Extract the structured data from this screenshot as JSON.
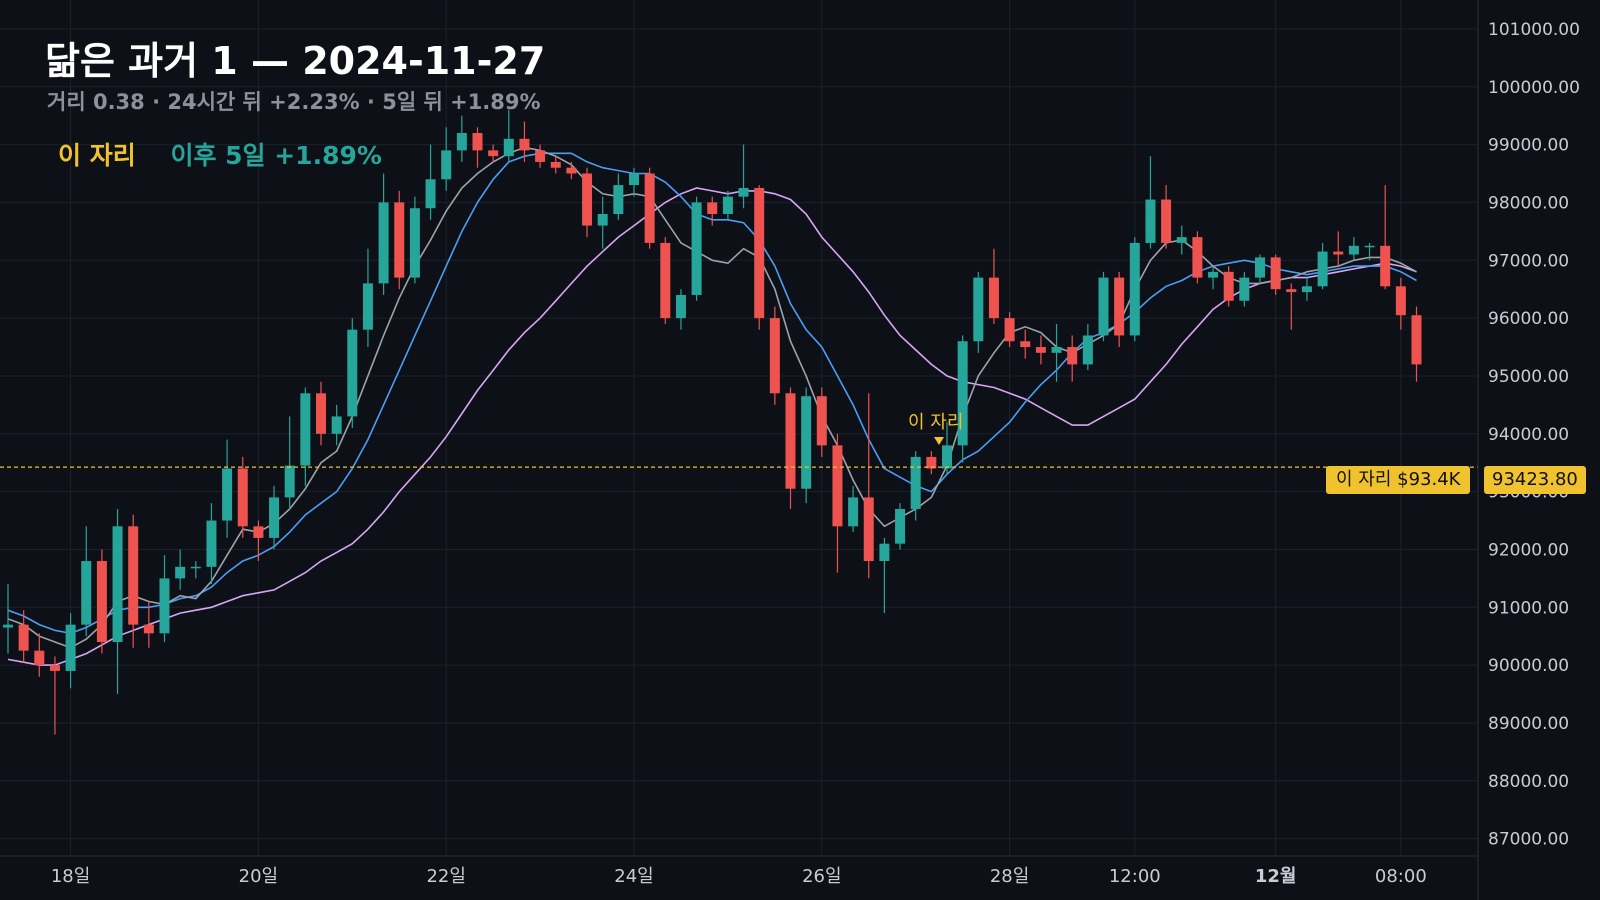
{
  "title": "닮은 과거 1 — 2024-11-27",
  "subtitle": "거리 0.38 · 24시간 뒤 +2.23% · 5일 뒤 +1.89%",
  "legend": {
    "here": "이 자리",
    "after": "이후 5일 +1.89%"
  },
  "callout": "이 자리",
  "marker_label": "이 자리 $93.4K",
  "price_label": "93423.80",
  "colors": {
    "up": "#26a69a",
    "down": "#ef5350",
    "accent": "#f0c22e",
    "ma_fast": "#9ea3ab",
    "ma_mid": "#4a9ef5",
    "ma_slow": "#d7a6f5",
    "grid": "#1c212b",
    "background": "#0d1017"
  },
  "chart_data": {
    "type": "candlestick",
    "ylim": [
      86700,
      101500
    ],
    "yticks": [
      "101000.00",
      "100000.00",
      "99000.00",
      "98000.00",
      "97000.00",
      "96000.00",
      "95000.00",
      "94000.00",
      "93000.00",
      "92000.00",
      "91000.00",
      "90000.00",
      "89000.00",
      "88000.00",
      "87000.00"
    ],
    "xticks": [
      "18일",
      "20일",
      "22일",
      "24일",
      "26일",
      "28일",
      "12:00",
      "12월",
      "08:00"
    ],
    "bold_xtick": "12월",
    "highlight_price": 93423.8,
    "highlight_index": 60,
    "candles": [
      [
        90650,
        90700,
        91400,
        90200
      ],
      [
        90700,
        90250,
        90950,
        90050
      ],
      [
        90250,
        90000,
        90550,
        89800
      ],
      [
        90000,
        89900,
        90150,
        88800
      ],
      [
        89900,
        90700,
        90900,
        89600
      ],
      [
        90700,
        91800,
        92400,
        90500
      ],
      [
        91800,
        90400,
        92000,
        90200
      ],
      [
        90400,
        92400,
        92700,
        89500
      ],
      [
        92400,
        90700,
        92600,
        90300
      ],
      [
        90700,
        90550,
        91100,
        90300
      ],
      [
        90550,
        91500,
        91900,
        90400
      ],
      [
        91500,
        91700,
        92000,
        91300
      ],
      [
        91700,
        91700,
        91800,
        91500
      ],
      [
        91700,
        92500,
        92800,
        91400
      ],
      [
        92500,
        93400,
        93900,
        92200
      ],
      [
        93400,
        92400,
        93600,
        92200
      ],
      [
        92400,
        92200,
        92500,
        91800
      ],
      [
        92200,
        92900,
        93100,
        92000
      ],
      [
        92900,
        93450,
        94300,
        92700
      ],
      [
        93450,
        94700,
        94800,
        93100
      ],
      [
        94700,
        94000,
        94900,
        93800
      ],
      [
        94000,
        94300,
        94500,
        93800
      ],
      [
        94300,
        95800,
        96000,
        94100
      ],
      [
        95800,
        96600,
        97200,
        95500
      ],
      [
        96600,
        98000,
        98500,
        96400
      ],
      [
        98000,
        96700,
        98200,
        96500
      ],
      [
        96700,
        97900,
        98100,
        96600
      ],
      [
        97900,
        98400,
        99000,
        97700
      ],
      [
        98400,
        98900,
        99300,
        98200
      ],
      [
        98900,
        99200,
        99500,
        98700
      ],
      [
        99200,
        98900,
        99300,
        98600
      ],
      [
        98900,
        98800,
        99000,
        98700
      ],
      [
        98800,
        99100,
        99600,
        98700
      ],
      [
        99100,
        98900,
        99400,
        98700
      ],
      [
        98900,
        98700,
        99000,
        98600
      ],
      [
        98700,
        98600,
        98800,
        98500
      ],
      [
        98600,
        98500,
        98700,
        98400
      ],
      [
        98500,
        97600,
        98600,
        97400
      ],
      [
        97600,
        97800,
        98100,
        97200
      ],
      [
        97800,
        98300,
        98500,
        97700
      ],
      [
        98300,
        98500,
        98600,
        98100
      ],
      [
        98500,
        97300,
        98600,
        97200
      ],
      [
        97300,
        96000,
        97400,
        95900
      ],
      [
        96000,
        96400,
        96500,
        95800
      ],
      [
        96400,
        98000,
        98100,
        96300
      ],
      [
        98000,
        97800,
        98100,
        97600
      ],
      [
        97800,
        98100,
        98200,
        97700
      ],
      [
        98100,
        98250,
        99000,
        97900
      ],
      [
        98250,
        96000,
        98300,
        95800
      ],
      [
        96000,
        94700,
        96200,
        94500
      ],
      [
        94700,
        93050,
        94800,
        92700
      ],
      [
        93050,
        94650,
        94800,
        92800
      ],
      [
        94650,
        93800,
        94800,
        93600
      ],
      [
        93800,
        92400,
        94000,
        91600
      ],
      [
        92400,
        92900,
        93100,
        92300
      ],
      [
        92900,
        91800,
        94700,
        91500
      ],
      [
        91800,
        92100,
        92200,
        90900
      ],
      [
        92100,
        92700,
        92800,
        92000
      ],
      [
        92700,
        93600,
        93700,
        92500
      ],
      [
        93600,
        93400,
        93700,
        93300
      ],
      [
        93400,
        93800,
        94200,
        93300
      ],
      [
        93800,
        95600,
        95700,
        93500
      ],
      [
        95600,
        96700,
        96800,
        95400
      ],
      [
        96700,
        96000,
        97200,
        95900
      ],
      [
        96000,
        95600,
        96100,
        95500
      ],
      [
        95600,
        95500,
        95800,
        95300
      ],
      [
        95500,
        95400,
        95700,
        95200
      ],
      [
        95400,
        95500,
        95900,
        94900
      ],
      [
        95500,
        95200,
        95700,
        94900
      ],
      [
        95200,
        95700,
        95900,
        95100
      ],
      [
        95700,
        96700,
        96800,
        95600
      ],
      [
        96700,
        95700,
        96800,
        95500
      ],
      [
        95700,
        97300,
        97400,
        95600
      ],
      [
        97300,
        98050,
        98800,
        97200
      ],
      [
        98050,
        97300,
        98300,
        97200
      ],
      [
        97300,
        97400,
        97600,
        97100
      ],
      [
        97400,
        96700,
        97500,
        96600
      ],
      [
        96700,
        96800,
        96900,
        96500
      ],
      [
        96800,
        96300,
        96900,
        96200
      ],
      [
        96300,
        96700,
        96800,
        96200
      ],
      [
        96700,
        97050,
        97100,
        96600
      ],
      [
        97050,
        96500,
        97100,
        96400
      ],
      [
        96500,
        96450,
        96600,
        95800
      ],
      [
        96450,
        96550,
        96700,
        96300
      ],
      [
        96550,
        97150,
        97300,
        96500
      ],
      [
        97150,
        97100,
        97500,
        96900
      ],
      [
        97100,
        97250,
        97400,
        97000
      ],
      [
        97250,
        97250,
        97300,
        97000
      ],
      [
        97250,
        96550,
        98300,
        96500
      ],
      [
        96550,
        96050,
        96700,
        95800
      ],
      [
        96050,
        95200,
        96200,
        94900
      ]
    ],
    "ma_fast": [
      90800,
      90700,
      90500,
      90400,
      90300,
      90450,
      90700,
      91100,
      91200,
      91100,
      91050,
      91200,
      91150,
      91450,
      91900,
      92350,
      92300,
      92450,
      92700,
      93050,
      93500,
      93700,
      94300,
      95000,
      95700,
      96350,
      96900,
      97350,
      97850,
      98250,
      98500,
      98700,
      98850,
      98950,
      98900,
      98800,
      98650,
      98350,
      98150,
      98100,
      98150,
      98100,
      97700,
      97300,
      97150,
      97000,
      96950,
      97200,
      97050,
      96500,
      95600,
      95000,
      94300,
      93800,
      93200,
      92700,
      92400,
      92550,
      92700,
      92900,
      93450,
      94300,
      95000,
      95400,
      95750,
      95850,
      95750,
      95500,
      95400,
      95550,
      95700,
      95900,
      96500,
      97000,
      97300,
      97350,
      97150,
      96900,
      96700,
      96600,
      96600,
      96650,
      96700,
      96800,
      96850,
      96900,
      97000,
      97050,
      97050,
      96950,
      96800
    ],
    "ma_mid": [
      90950,
      90850,
      90700,
      90600,
      90550,
      90650,
      90800,
      90950,
      91000,
      91000,
      91050,
      91150,
      91200,
      91350,
      91600,
      91800,
      91900,
      92050,
      92300,
      92600,
      92800,
      93000,
      93400,
      93900,
      94500,
      95100,
      95700,
      96300,
      96900,
      97500,
      98000,
      98400,
      98700,
      98800,
      98850,
      98850,
      98850,
      98700,
      98600,
      98550,
      98500,
      98500,
      98350,
      98100,
      97800,
      97700,
      97700,
      97650,
      97350,
      96900,
      96250,
      95800,
      95500,
      95000,
      94500,
      93900,
      93400,
      93250,
      93100,
      93000,
      93300,
      93550,
      93700,
      93950,
      94200,
      94550,
      94850,
      95100,
      95400,
      95650,
      95750,
      95900,
      96100,
      96350,
      96550,
      96650,
      96800,
      96900,
      96950,
      97000,
      96950,
      96850,
      96800,
      96750,
      96800,
      96850,
      96900,
      96900,
      96900,
      96800,
      96650
    ],
    "ma_slow": [
      90100,
      90050,
      90000,
      90000,
      90100,
      90200,
      90350,
      90500,
      90600,
      90700,
      90800,
      90900,
      90950,
      91000,
      91100,
      91200,
      91250,
      91300,
      91450,
      91600,
      91800,
      91950,
      92100,
      92350,
      92650,
      93000,
      93300,
      93600,
      93950,
      94350,
      94750,
      95100,
      95450,
      95750,
      96000,
      96300,
      96600,
      96900,
      97150,
      97400,
      97600,
      97800,
      98000,
      98150,
      98250,
      98200,
      98150,
      98200,
      98200,
      98150,
      98050,
      97800,
      97400,
      97100,
      96800,
      96450,
      96050,
      95700,
      95450,
      95200,
      95000,
      94900,
      94850,
      94800,
      94700,
      94600,
      94450,
      94300,
      94150,
      94150,
      94300,
      94450,
      94600,
      94900,
      95200,
      95550,
      95850,
      96150,
      96350,
      96500,
      96600,
      96650,
      96700,
      96700,
      96750,
      96800,
      96850,
      96900,
      96950,
      96900,
      96800
    ]
  }
}
